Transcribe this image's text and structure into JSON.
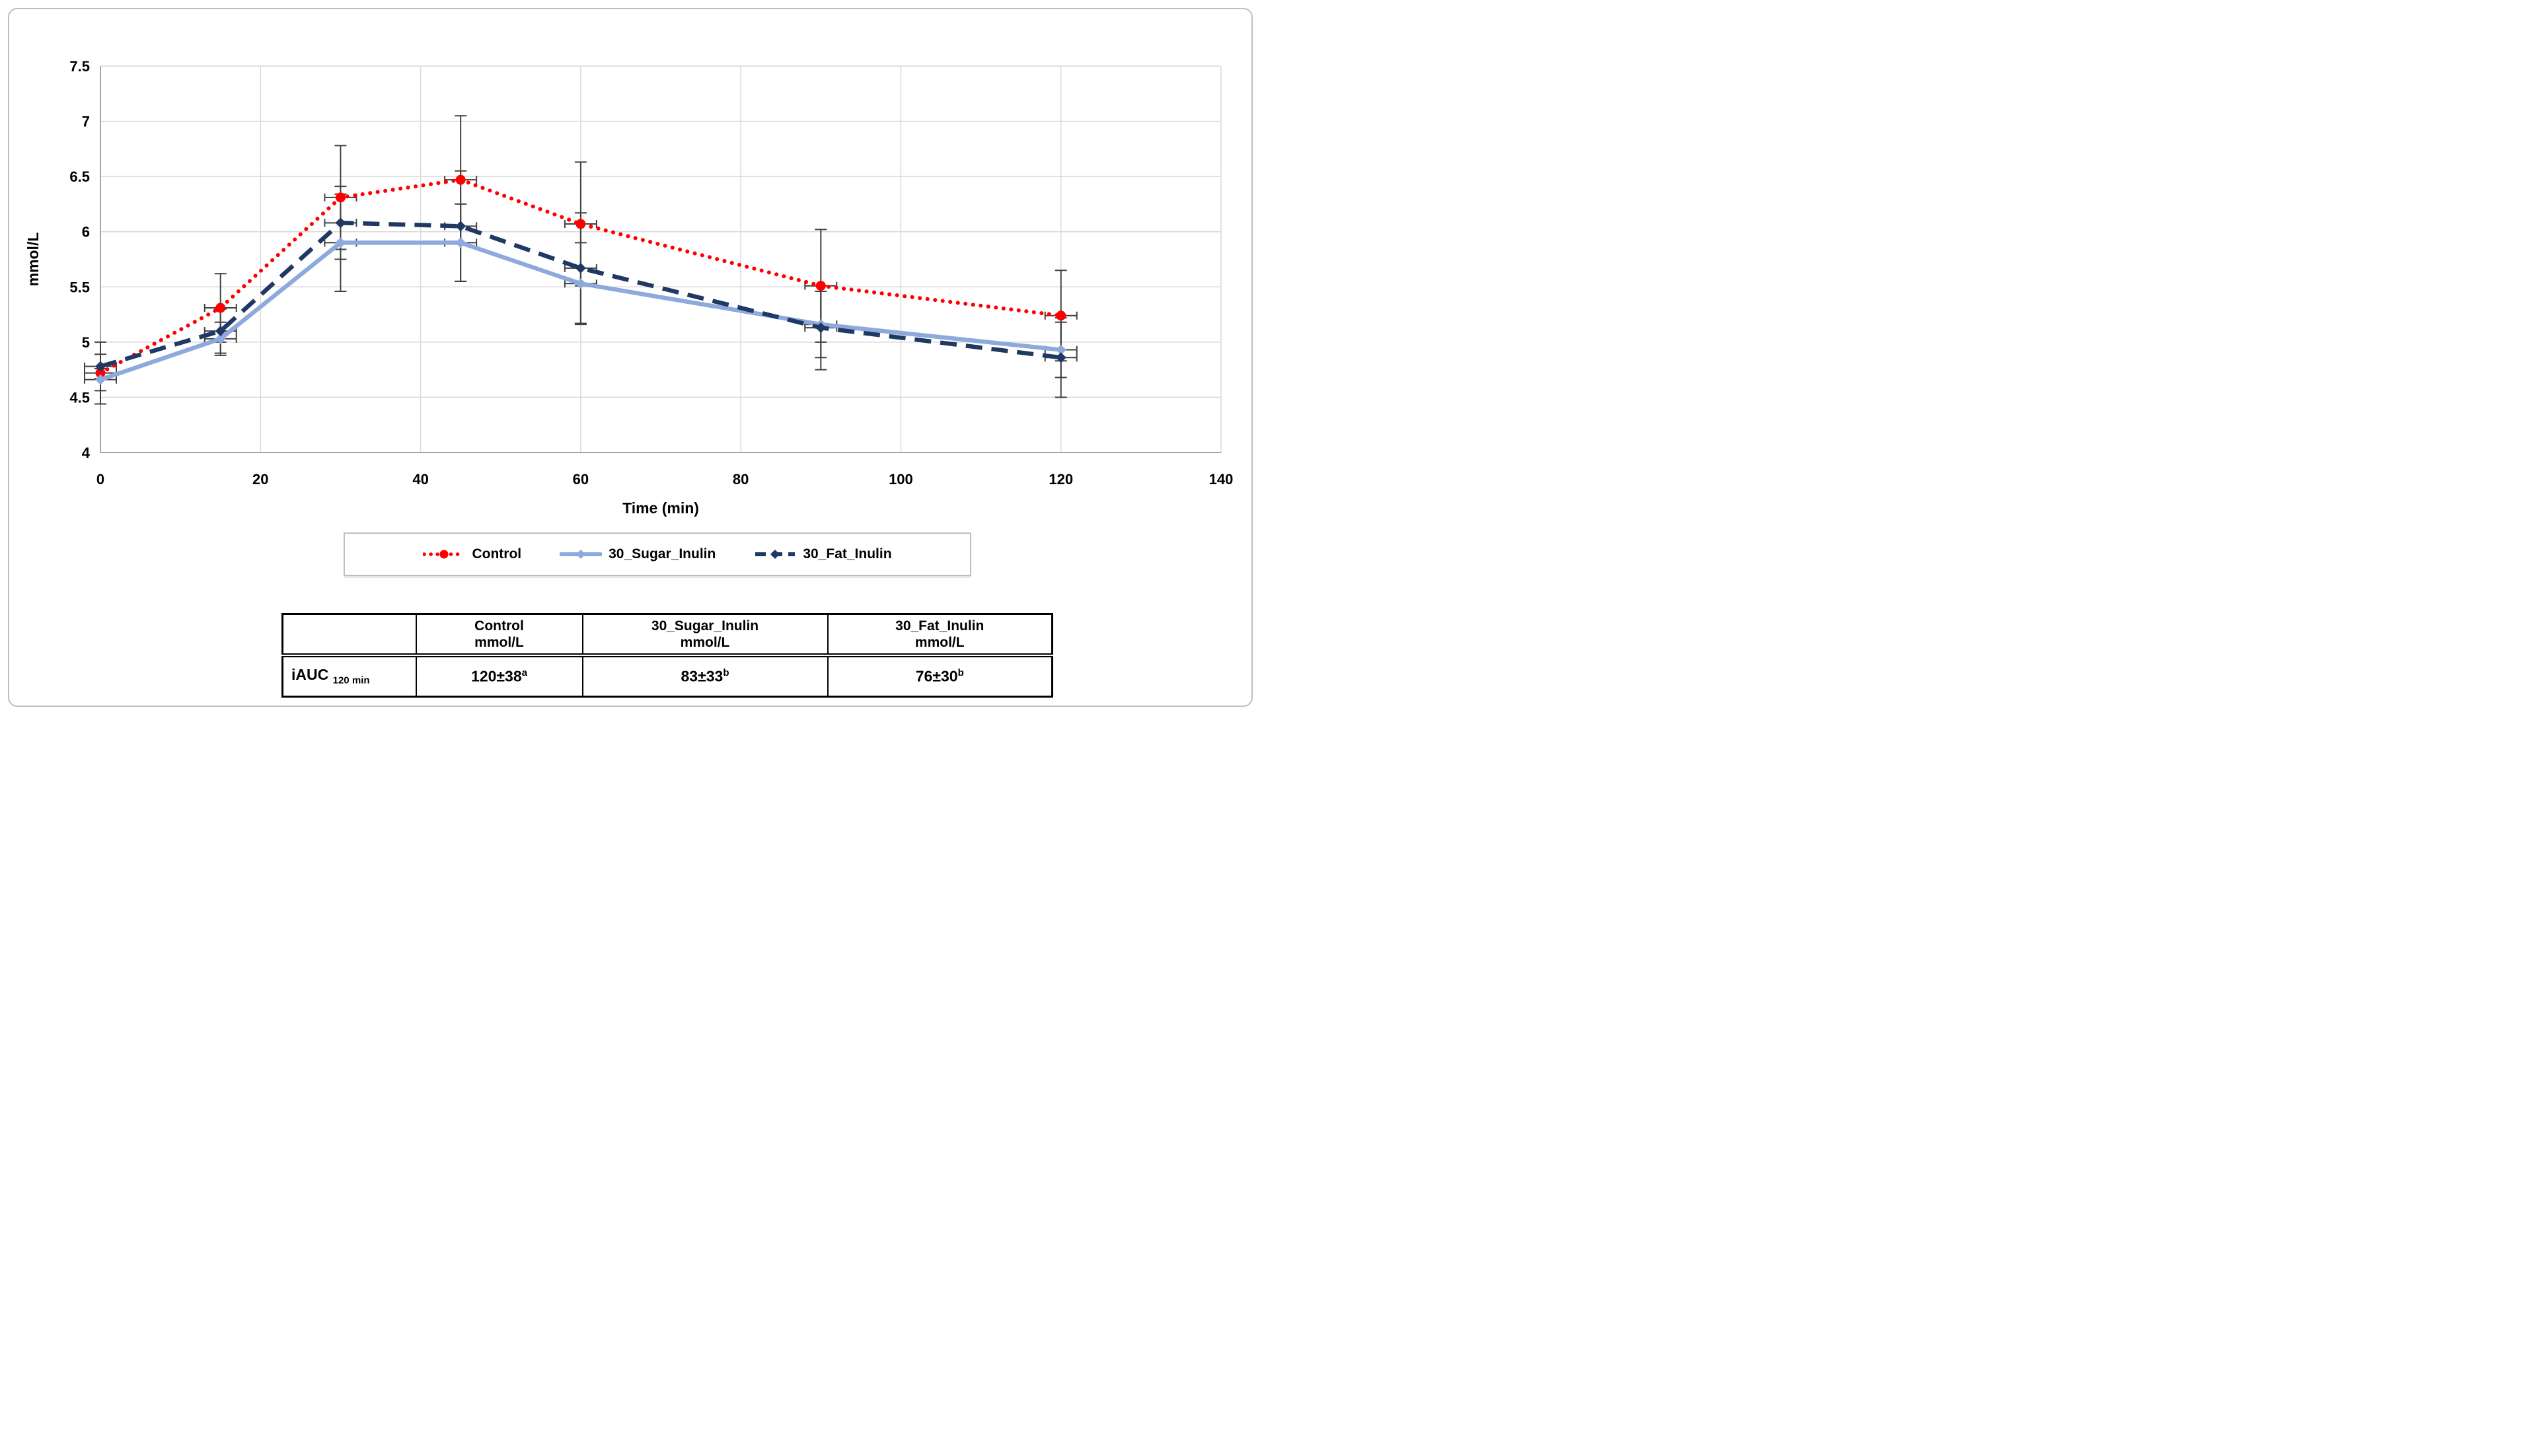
{
  "colors": {
    "grid": "#D9D9D9",
    "axis": "#A6A6A6",
    "error_bar": "#404040",
    "frame_border": "#BFBFBF",
    "table_border": "#000000",
    "control_red": "#FF0000",
    "sugar_blue": "#8EAADC",
    "fat_navy": "#1F3864"
  },
  "chart_data": {
    "type": "line",
    "title": "",
    "xlabel": "Time (min)",
    "ylabel": "mmol/L",
    "xlim": [
      0,
      140
    ],
    "ylim": [
      4,
      7.5
    ],
    "x_ticks": [
      0,
      20,
      40,
      60,
      80,
      100,
      120,
      140
    ],
    "x_tick_labels": [
      "0",
      "20",
      "40",
      "60",
      "80",
      "100",
      "120",
      "140"
    ],
    "y_ticks": [
      4,
      4.5,
      5,
      5.5,
      6,
      6.5,
      7,
      7.5
    ],
    "y_tick_labels": [
      "4",
      "4.5",
      "5",
      "5.5",
      "6",
      "6.5",
      "7",
      "7.5"
    ],
    "grid": true,
    "error_bars": true,
    "legend_position": "bottom",
    "x": [
      0,
      15,
      30,
      45,
      60,
      90,
      120
    ],
    "series": [
      {
        "name": "Control",
        "color": "#FF0000",
        "line_style": "dotted",
        "marker": "circle",
        "values": [
          4.72,
          5.31,
          6.31,
          6.47,
          6.07,
          5.51,
          5.24
        ],
        "errors": [
          0.28,
          0.31,
          0.47,
          0.58,
          0.56,
          0.51,
          0.41
        ]
      },
      {
        "name": "30_Sugar_Inulin",
        "color": "#8EAADC",
        "line_style": "solid",
        "marker": "diamond",
        "values": [
          4.66,
          5.03,
          5.9,
          5.9,
          5.53,
          5.16,
          4.93
        ],
        "errors": [
          0.1,
          0.15,
          0.44,
          0.35,
          0.37,
          0.3,
          0.25
        ]
      },
      {
        "name": "30_Fat_Inulin",
        "color": "#1F3864",
        "line_style": "dashed",
        "marker": "diamond",
        "values": [
          4.78,
          5.1,
          6.08,
          6.05,
          5.67,
          5.13,
          4.86
        ],
        "errors": [
          0.11,
          0.2,
          0.33,
          0.5,
          0.5,
          0.38,
          0.36
        ]
      }
    ]
  },
  "table": {
    "columns": [
      {
        "line1": "",
        "line2": ""
      },
      {
        "line1": "Control",
        "line2": "mmol/L"
      },
      {
        "line1": "30_Sugar_Inulin",
        "line2": "mmol/L"
      },
      {
        "line1": "30_Fat_Inulin",
        "line2": "mmol/L"
      }
    ],
    "row": {
      "label": "iAUC",
      "label_subscript": "120 min",
      "values": [
        {
          "text": "120±38",
          "superscript": "a"
        },
        {
          "text": "83±33",
          "superscript": "b"
        },
        {
          "text": "76±30",
          "superscript": "b"
        }
      ]
    }
  }
}
